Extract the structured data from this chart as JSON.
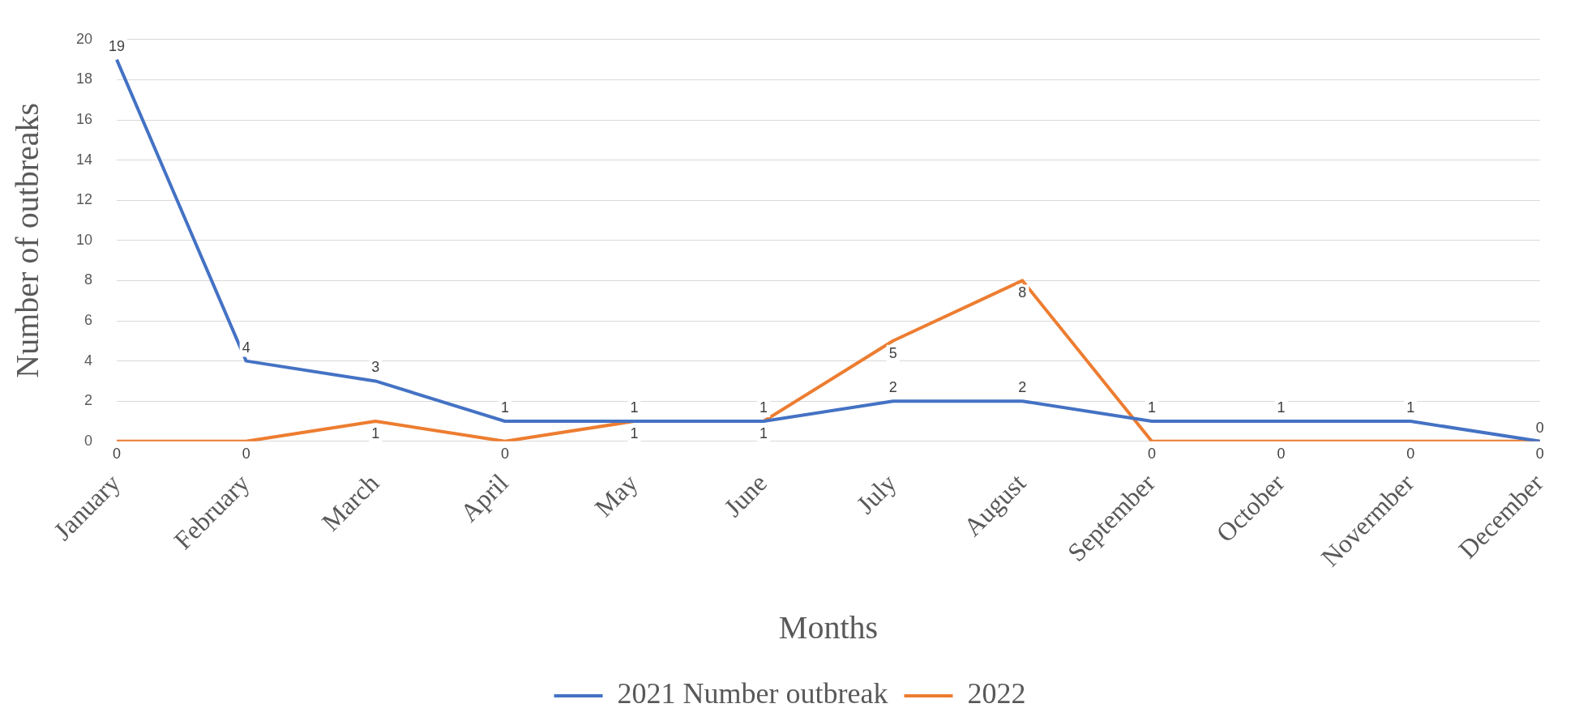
{
  "chart_data": {
    "type": "line",
    "xlabel": "Months",
    "ylabel": "Number of outbreaks",
    "categories": [
      "January",
      "February",
      "March",
      "April",
      "May",
      "June",
      "July",
      "August",
      "September",
      "October",
      "Novermber",
      "December"
    ],
    "series": [
      {
        "name": "2021 Number outbreak",
        "color": "#4472c4",
        "values": [
          19,
          4,
          3,
          1,
          1,
          1,
          2,
          2,
          1,
          1,
          1,
          0
        ]
      },
      {
        "name": "2022",
        "color": "#ed7d31",
        "values": [
          0,
          0,
          1,
          0,
          1,
          1,
          5,
          8,
          0,
          0,
          0,
          0
        ]
      }
    ],
    "ylim": [
      0,
      20
    ],
    "yticks": [
      0,
      2,
      4,
      6,
      8,
      10,
      12,
      14,
      16,
      18,
      20
    ],
    "grid": "y",
    "legend": "bottom",
    "marker": "none",
    "line_style": "solid",
    "data_labels": true
  }
}
